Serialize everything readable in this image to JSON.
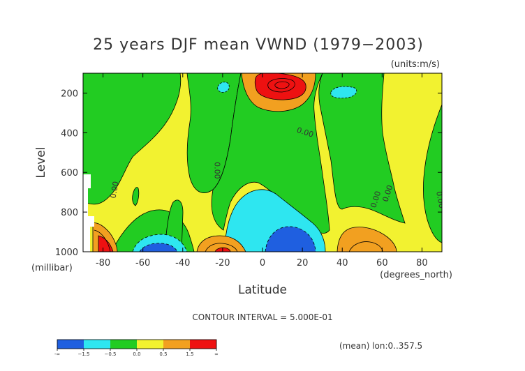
{
  "chart_data": {
    "type": "contour",
    "title": "25 years DJF mean VWND  (1979−2003)",
    "units": "(units:m/s)",
    "xlabel": "Latitude",
    "x_units": "(degrees_north)",
    "ylabel": "Level",
    "y_units": "(millibar)",
    "xlim": [
      -90,
      90
    ],
    "ylim": [
      1000,
      100
    ],
    "y_inverted": true,
    "x_ticks": [
      "-80",
      "-60",
      "-40",
      "-20",
      "0",
      "20",
      "40",
      "60",
      "80"
    ],
    "x_tick_values": [
      -80,
      -60,
      -40,
      -20,
      0,
      20,
      40,
      60,
      80
    ],
    "y_ticks": [
      "200",
      "400",
      "600",
      "800",
      "1000"
    ],
    "y_tick_values": [
      200,
      400,
      600,
      800,
      1000
    ],
    "contour_interval_text": "CONTOUR INTERVAL = 5.000E-01",
    "contour_labels": [
      {
        "text": "0.00",
        "lat": -73,
        "level": 690,
        "rotate": -80
      },
      {
        "text": "0.00",
        "lat": -24,
        "level": 590,
        "rotate": 90
      },
      {
        "text": "0.00",
        "lat": 21,
        "level": 410,
        "rotate": 18
      },
      {
        "text": "0.00",
        "lat": 58,
        "level": 740,
        "rotate": -72
      },
      {
        "text": "0.00",
        "lat": 64,
        "level": 710,
        "rotate": -72
      },
      {
        "text": "0.00",
        "lat": 88,
        "level": 740,
        "rotate": 80
      }
    ],
    "colorbar": {
      "labels": [
        "-∞",
        "−1.5",
        "−0.5",
        "0.0",
        "0.5",
        "1.5",
        "∞"
      ],
      "colors": [
        "#1f5fe0",
        "#2ee6f0",
        "#22cc22",
        "#f2f230",
        "#f2a020",
        "#ee1111"
      ],
      "levels": [
        -1.5,
        -0.5,
        0.0,
        0.5,
        1.5
      ]
    },
    "footer_note": "(mean) lon:0..357.5"
  }
}
